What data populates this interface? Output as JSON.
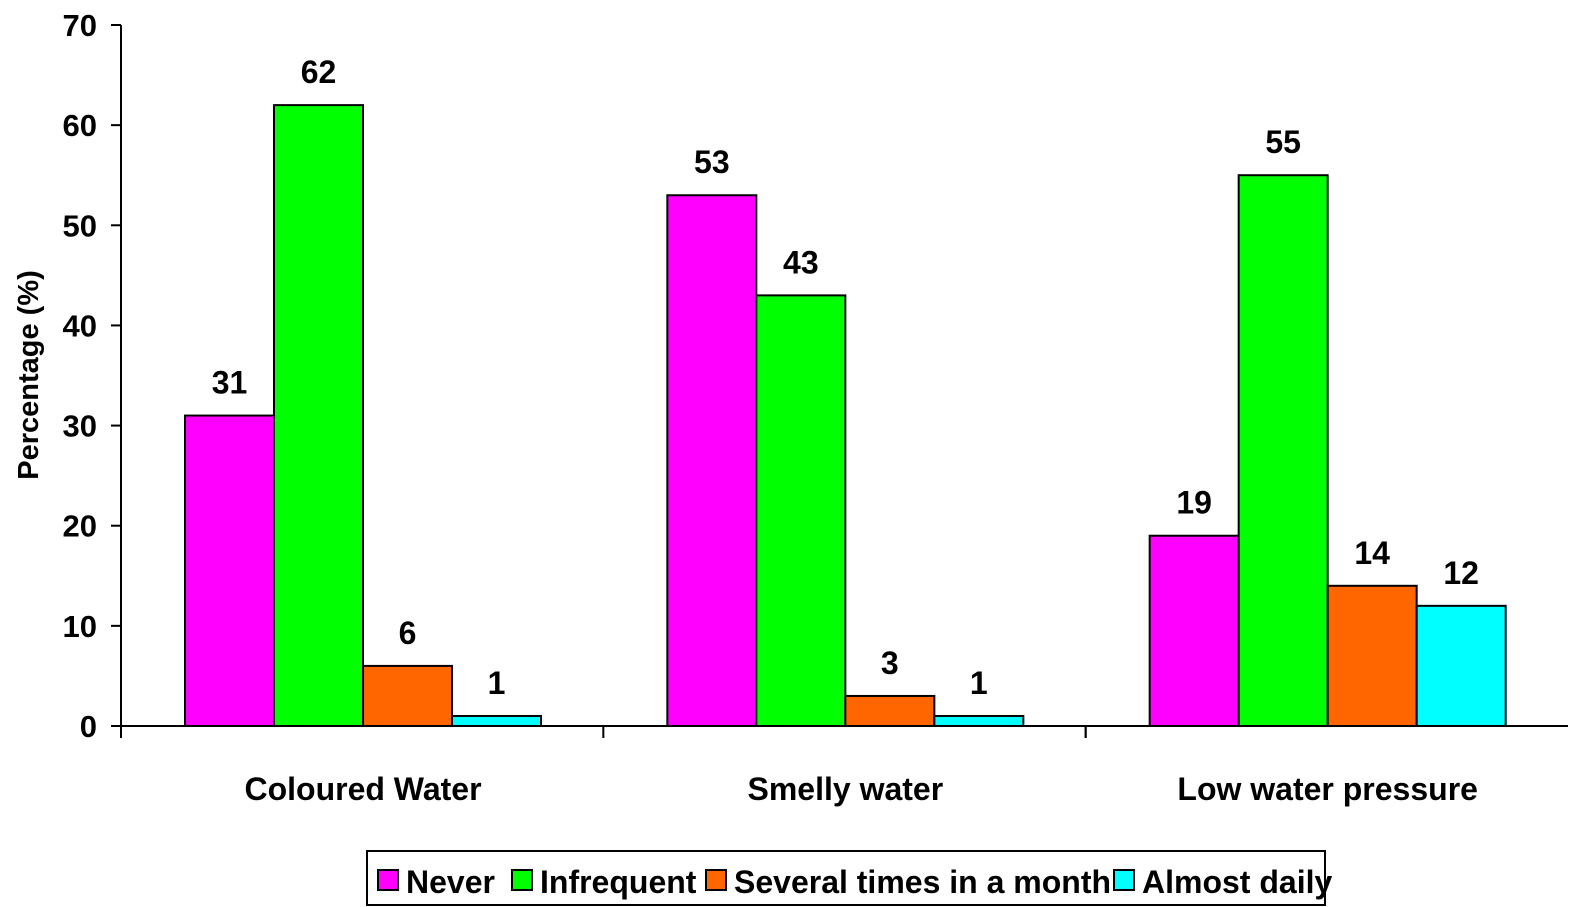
{
  "chart_data": {
    "type": "bar",
    "title": "",
    "xlabel": "",
    "ylabel": "Percentage (%)",
    "ylim": [
      0,
      70
    ],
    "yticks": [
      0,
      10,
      20,
      30,
      40,
      50,
      60,
      70
    ],
    "grid": false,
    "legend_position": "bottom",
    "categories": [
      "Coloured Water",
      "Smelly water",
      "Low water pressure"
    ],
    "series": [
      {
        "name": "Never",
        "color": "#ff00ff",
        "values": [
          31,
          53,
          19
        ],
        "labels": [
          "31",
          "53",
          "19"
        ]
      },
      {
        "name": "Infrequent",
        "color": "#00ff00",
        "values": [
          62,
          43,
          55
        ],
        "labels": [
          "62",
          "43",
          "55"
        ]
      },
      {
        "name": "Several times in a month",
        "color": "#ff6600",
        "values": [
          6,
          3,
          14
        ],
        "labels": [
          "6",
          "3",
          "14"
        ]
      },
      {
        "name": "Almost daily",
        "color": "#00ffff",
        "values": [
          1,
          1,
          12
        ],
        "labels": [
          "1",
          "1",
          "12"
        ]
      }
    ]
  }
}
